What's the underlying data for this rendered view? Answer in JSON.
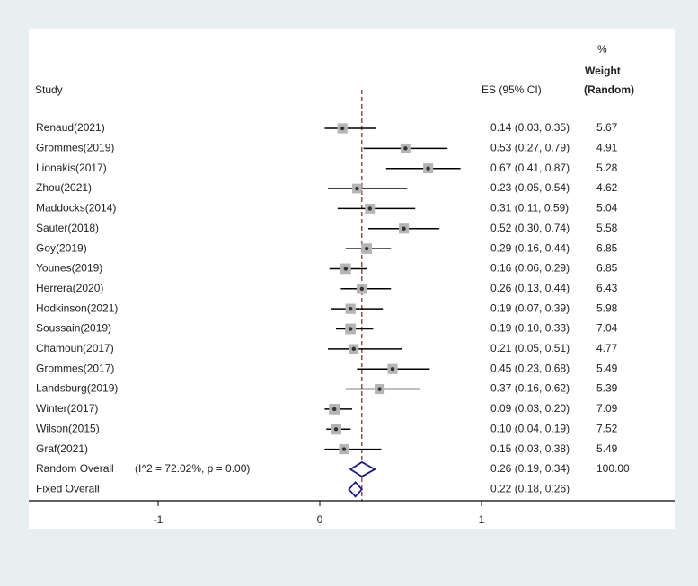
{
  "chart_data": {
    "type": "forest",
    "headers": {
      "study": "Study",
      "es": "ES (95% CI)",
      "weight_pct": "%",
      "weight_label": "Weight",
      "weight_method": "(Random)"
    },
    "studies": [
      {
        "study": "Renaud(2021)",
        "es": 0.14,
        "lo": 0.03,
        "hi": 0.35,
        "ci_text": "0.14 (0.03, 0.35)",
        "weight": "5.67"
      },
      {
        "study": "Grommes(2019)",
        "es": 0.53,
        "lo": 0.27,
        "hi": 0.79,
        "ci_text": "0.53 (0.27, 0.79)",
        "weight": "4.91"
      },
      {
        "study": "Lionakis(2017)",
        "es": 0.67,
        "lo": 0.41,
        "hi": 0.87,
        "ci_text": "0.67 (0.41, 0.87)",
        "weight": "5.28"
      },
      {
        "study": "Zhou(2021)",
        "es": 0.23,
        "lo": 0.05,
        "hi": 0.54,
        "ci_text": "0.23 (0.05, 0.54)",
        "weight": "4.62"
      },
      {
        "study": "Maddocks(2014)",
        "es": 0.31,
        "lo": 0.11,
        "hi": 0.59,
        "ci_text": "0.31 (0.11, 0.59)",
        "weight": "5.04"
      },
      {
        "study": "Sauter(2018)",
        "es": 0.52,
        "lo": 0.3,
        "hi": 0.74,
        "ci_text": "0.52 (0.30, 0.74)",
        "weight": "5.58"
      },
      {
        "study": "Goy(2019)",
        "es": 0.29,
        "lo": 0.16,
        "hi": 0.44,
        "ci_text": "0.29 (0.16, 0.44)",
        "weight": "6.85"
      },
      {
        "study": "Younes(2019)",
        "es": 0.16,
        "lo": 0.06,
        "hi": 0.29,
        "ci_text": "0.16 (0.06, 0.29)",
        "weight": "6.85"
      },
      {
        "study": "Herrera(2020)",
        "es": 0.26,
        "lo": 0.13,
        "hi": 0.44,
        "ci_text": "0.26 (0.13, 0.44)",
        "weight": "6.43"
      },
      {
        "study": "Hodkinson(2021)",
        "es": 0.19,
        "lo": 0.07,
        "hi": 0.39,
        "ci_text": "0.19 (0.07, 0.39)",
        "weight": "5.98"
      },
      {
        "study": "Soussain(2019)",
        "es": 0.19,
        "lo": 0.1,
        "hi": 0.33,
        "ci_text": "0.19 (0.10, 0.33)",
        "weight": "7.04"
      },
      {
        "study": "Chamoun(2017)",
        "es": 0.21,
        "lo": 0.05,
        "hi": 0.51,
        "ci_text": "0.21 (0.05, 0.51)",
        "weight": "4.77"
      },
      {
        "study": "Grommes(2017)",
        "es": 0.45,
        "lo": 0.23,
        "hi": 0.68,
        "ci_text": "0.45 (0.23, 0.68)",
        "weight": "5.49"
      },
      {
        "study": "Landsburg(2019)",
        "es": 0.37,
        "lo": 0.16,
        "hi": 0.62,
        "ci_text": "0.37 (0.16, 0.62)",
        "weight": "5.39"
      },
      {
        "study": "Winter(2017)",
        "es": 0.09,
        "lo": 0.03,
        "hi": 0.2,
        "ci_text": "0.09 (0.03, 0.20)",
        "weight": "7.09"
      },
      {
        "study": "Wilson(2015)",
        "es": 0.1,
        "lo": 0.04,
        "hi": 0.19,
        "ci_text": "0.10 (0.04, 0.19)",
        "weight": "7.52"
      },
      {
        "study": "Graf(2021)",
        "es": 0.15,
        "lo": 0.03,
        "hi": 0.38,
        "ci_text": "0.15 (0.03, 0.38)",
        "weight": "5.49"
      }
    ],
    "overall": [
      {
        "label": "Random Overall",
        "stats": "(I^2 = 72.02%, p = 0.00)",
        "es": 0.26,
        "lo": 0.19,
        "hi": 0.34,
        "ci_text": "0.26 (0.19, 0.34)",
        "weight": "100.00"
      },
      {
        "label": "Fixed Overall",
        "stats": "",
        "es": 0.22,
        "lo": 0.18,
        "hi": 0.26,
        "ci_text": "0.22 (0.18, 0.26)",
        "weight": ""
      }
    ],
    "reference_line": 0.26,
    "x_ticks": [
      -1,
      0,
      1
    ],
    "tick_labels": [
      "-1",
      "0",
      "1"
    ],
    "colors": {
      "background": "#e9eef1",
      "panel": "#ffffff",
      "ci_line": "#000000",
      "weight_box": "#b5b5b5",
      "point": "#333333",
      "reference_line": "#7a2a2a",
      "diamond": "#1a1a80",
      "axis": "#000000"
    }
  }
}
